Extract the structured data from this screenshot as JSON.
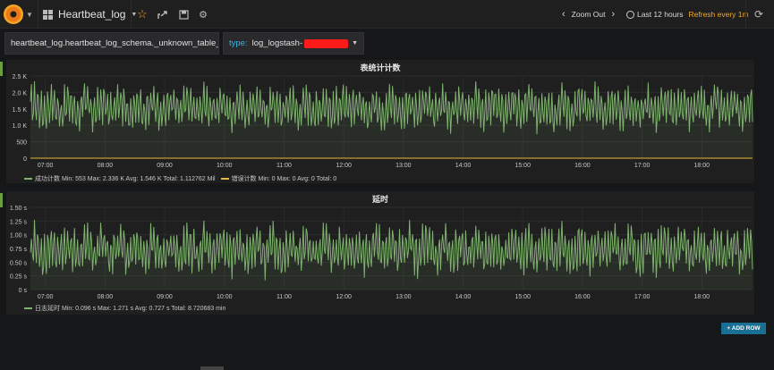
{
  "colors": {
    "accent": "#f5a623",
    "series_green": "#7eb26d",
    "series_yellow": "#eab839",
    "button_blue": "#1a6f94",
    "template_label": "#33b5e5"
  },
  "topbar": {
    "logo_icon": "grafana-logo-icon",
    "dashboard_title": "Heartbeat_log",
    "icons": [
      "star-icon",
      "share-icon",
      "save-icon",
      "gear-icon"
    ],
    "zoom_label": "Zoom Out",
    "time_range": "Last 12 hours",
    "refresh_label": "Refresh every 1m"
  },
  "templating": {
    "query": "heartbeat_log.heartbeat_log_schema._unknown_table_",
    "type_label": "type:",
    "type_value": "log_logstash-"
  },
  "panels": [
    {
      "title": "表统计计数",
      "legend": [
        {
          "name": "成功计数",
          "stats": "Min: 553  Max: 2.336 K  Avg: 1.546 K  Total: 1.112762 Mil",
          "color": "#7eb26d"
        },
        {
          "name": "错误计数",
          "stats": "Min: 0  Max: 0  Avg: 0  Total: 0",
          "color": "#eab839"
        }
      ]
    },
    {
      "title": "延时",
      "legend": [
        {
          "name": "日志延时",
          "stats": "Min: 0.096 s  Max: 1.271 s  Avg: 0.727 s  Total: 8.720683 min",
          "color": "#7eb26d"
        }
      ]
    }
  ],
  "add_row_label": "+ ADD ROW",
  "chart_data": [
    {
      "type": "line",
      "title": "表统计计数",
      "x_ticks": [
        "07:00",
        "08:00",
        "09:00",
        "10:00",
        "11:00",
        "12:00",
        "13:00",
        "14:00",
        "15:00",
        "16:00",
        "17:00",
        "18:00"
      ],
      "y_ticks": [
        "0",
        "500",
        "1.0 K",
        "1.5 K",
        "2.0 K",
        "2.5 K"
      ],
      "ylim": [
        0,
        2500
      ],
      "x_range_hours": [
        6.75,
        18.85
      ],
      "series": [
        {
          "name": "成功计数",
          "color": "#7eb26d",
          "min": 553,
          "max": 2336,
          "avg": 1546,
          "style": "oscillating"
        },
        {
          "name": "错误计数",
          "color": "#eab839",
          "constant": 0
        }
      ],
      "grid": true,
      "legend_placement": "bottom-left"
    },
    {
      "type": "line",
      "title": "延时",
      "x_ticks": [
        "07:00",
        "08:00",
        "09:00",
        "10:00",
        "11:00",
        "12:00",
        "13:00",
        "14:00",
        "15:00",
        "16:00",
        "17:00",
        "18:00"
      ],
      "y_ticks": [
        "0 s",
        "0.25 s",
        "0.50 s",
        "0.75 s",
        "1.00 s",
        "1.25 s",
        "1.50 s"
      ],
      "ylim": [
        0,
        1.5
      ],
      "x_range_hours": [
        6.75,
        18.85
      ],
      "series": [
        {
          "name": "日志延时",
          "color": "#7eb26d",
          "min": 0.096,
          "max": 1.271,
          "avg": 0.727,
          "style": "oscillating"
        }
      ],
      "grid": true,
      "legend_placement": "bottom-left"
    }
  ]
}
